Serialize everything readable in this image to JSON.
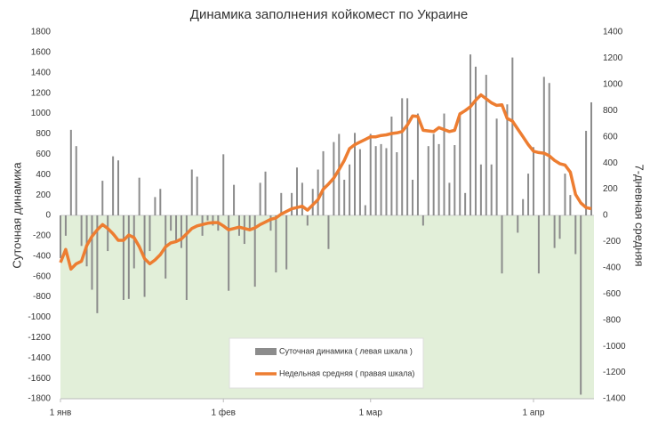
{
  "chart_data": {
    "type": "combo",
    "title": "Динамика заполнения койкомест по Украине",
    "y_label": "Суточная динамика",
    "y2_label": "7-дневная средняя",
    "x": [
      0,
      1,
      2,
      3,
      4,
      5,
      6,
      7,
      8,
      9,
      10,
      11,
      12,
      13,
      14,
      15,
      16,
      17,
      18,
      19,
      20,
      21,
      22,
      23,
      24,
      25,
      26,
      27,
      28,
      29,
      30,
      31,
      32,
      33,
      34,
      35,
      36,
      37,
      38,
      39,
      40,
      41,
      42,
      43,
      44,
      45,
      46,
      47,
      48,
      49,
      50,
      51,
      52,
      53,
      54,
      55,
      56,
      57,
      58,
      59,
      60,
      61,
      62,
      63,
      64,
      65,
      66,
      67,
      68,
      69,
      70,
      71,
      72,
      73,
      74,
      75,
      76,
      77,
      78,
      79,
      80,
      81,
      82,
      83,
      84,
      85,
      86,
      87,
      88,
      89,
      90,
      91,
      92,
      93,
      94,
      95,
      96,
      97,
      98,
      99,
      100,
      101
    ],
    "xlim": [
      0,
      101
    ],
    "xticks": [
      {
        "value": 0,
        "label": "1 янв"
      },
      {
        "value": 31,
        "label": "1 фев"
      },
      {
        "value": 59,
        "label": "1 мар"
      },
      {
        "value": 90,
        "label": "1 апр"
      }
    ],
    "ylim": [
      -1800,
      1800
    ],
    "yticks": [
      -1800,
      -1600,
      -1400,
      -1200,
      -1000,
      -800,
      -600,
      -400,
      -200,
      0,
      200,
      400,
      600,
      800,
      1000,
      1200,
      1400,
      1600,
      1800
    ],
    "y2lim": [
      -1400,
      1400
    ],
    "y2ticks": [
      -1400,
      -1200,
      -1000,
      -800,
      -600,
      -400,
      -200,
      0,
      200,
      400,
      600,
      800,
      1000,
      1200,
      1400
    ],
    "negative_fill": "#e2efd9",
    "series": [
      {
        "name": "Суточная динамика ( левая шкала )",
        "type": "bar",
        "color": "#8c8c8c",
        "values": [
          -420,
          -200,
          840,
          680,
          -300,
          -500,
          -730,
          -960,
          340,
          -350,
          580,
          540,
          -830,
          -820,
          -520,
          370,
          -800,
          -350,
          180,
          260,
          -620,
          -150,
          -250,
          -320,
          -830,
          450,
          380,
          -200,
          -50,
          -100,
          -150,
          600,
          -740,
          300,
          -200,
          -280,
          -150,
          -700,
          320,
          430,
          -150,
          -560,
          220,
          -530,
          220,
          470,
          320,
          -100,
          260,
          450,
          630,
          -330,
          720,
          800,
          350,
          500,
          810,
          650,
          100,
          800,
          680,
          700,
          660,
          970,
          620,
          1150,
          1150,
          350,
          1000,
          -100,
          680,
          800,
          700,
          1000,
          320,
          690,
          1010,
          220,
          1580,
          1460,
          500,
          1380,
          500,
          950,
          -570,
          1090,
          1550,
          -170,
          160,
          410,
          670,
          -570,
          1360,
          1300,
          -320,
          -230,
          410,
          200,
          -380,
          -1760,
          830,
          1110
        ]
      },
      {
        "name": "Недельная средняя ( правая шкала)",
        "type": "line",
        "axis": "y2",
        "color": "#ed7d31",
        "values": [
          -360,
          -260,
          -410,
          -370,
          -350,
          -230,
          -160,
          -110,
          -70,
          -100,
          -140,
          -190,
          -190,
          -150,
          -170,
          -240,
          -330,
          -370,
          -340,
          -300,
          -240,
          -210,
          -200,
          -180,
          -140,
          -100,
          -80,
          -70,
          -60,
          -55,
          -55,
          -80,
          -110,
          -100,
          -90,
          -100,
          -110,
          -95,
          -70,
          -50,
          -30,
          -20,
          10,
          30,
          50,
          60,
          70,
          40,
          80,
          120,
          200,
          240,
          285,
          350,
          420,
          510,
          540,
          560,
          580,
          600,
          600,
          610,
          615,
          625,
          630,
          640,
          690,
          760,
          755,
          650,
          645,
          640,
          670,
          655,
          640,
          650,
          775,
          800,
          830,
          880,
          920,
          890,
          860,
          840,
          845,
          740,
          720,
          660,
          600,
          540,
          490,
          480,
          475,
          455,
          420,
          395,
          385,
          330,
          160,
          95,
          60,
          50
        ]
      }
    ]
  }
}
